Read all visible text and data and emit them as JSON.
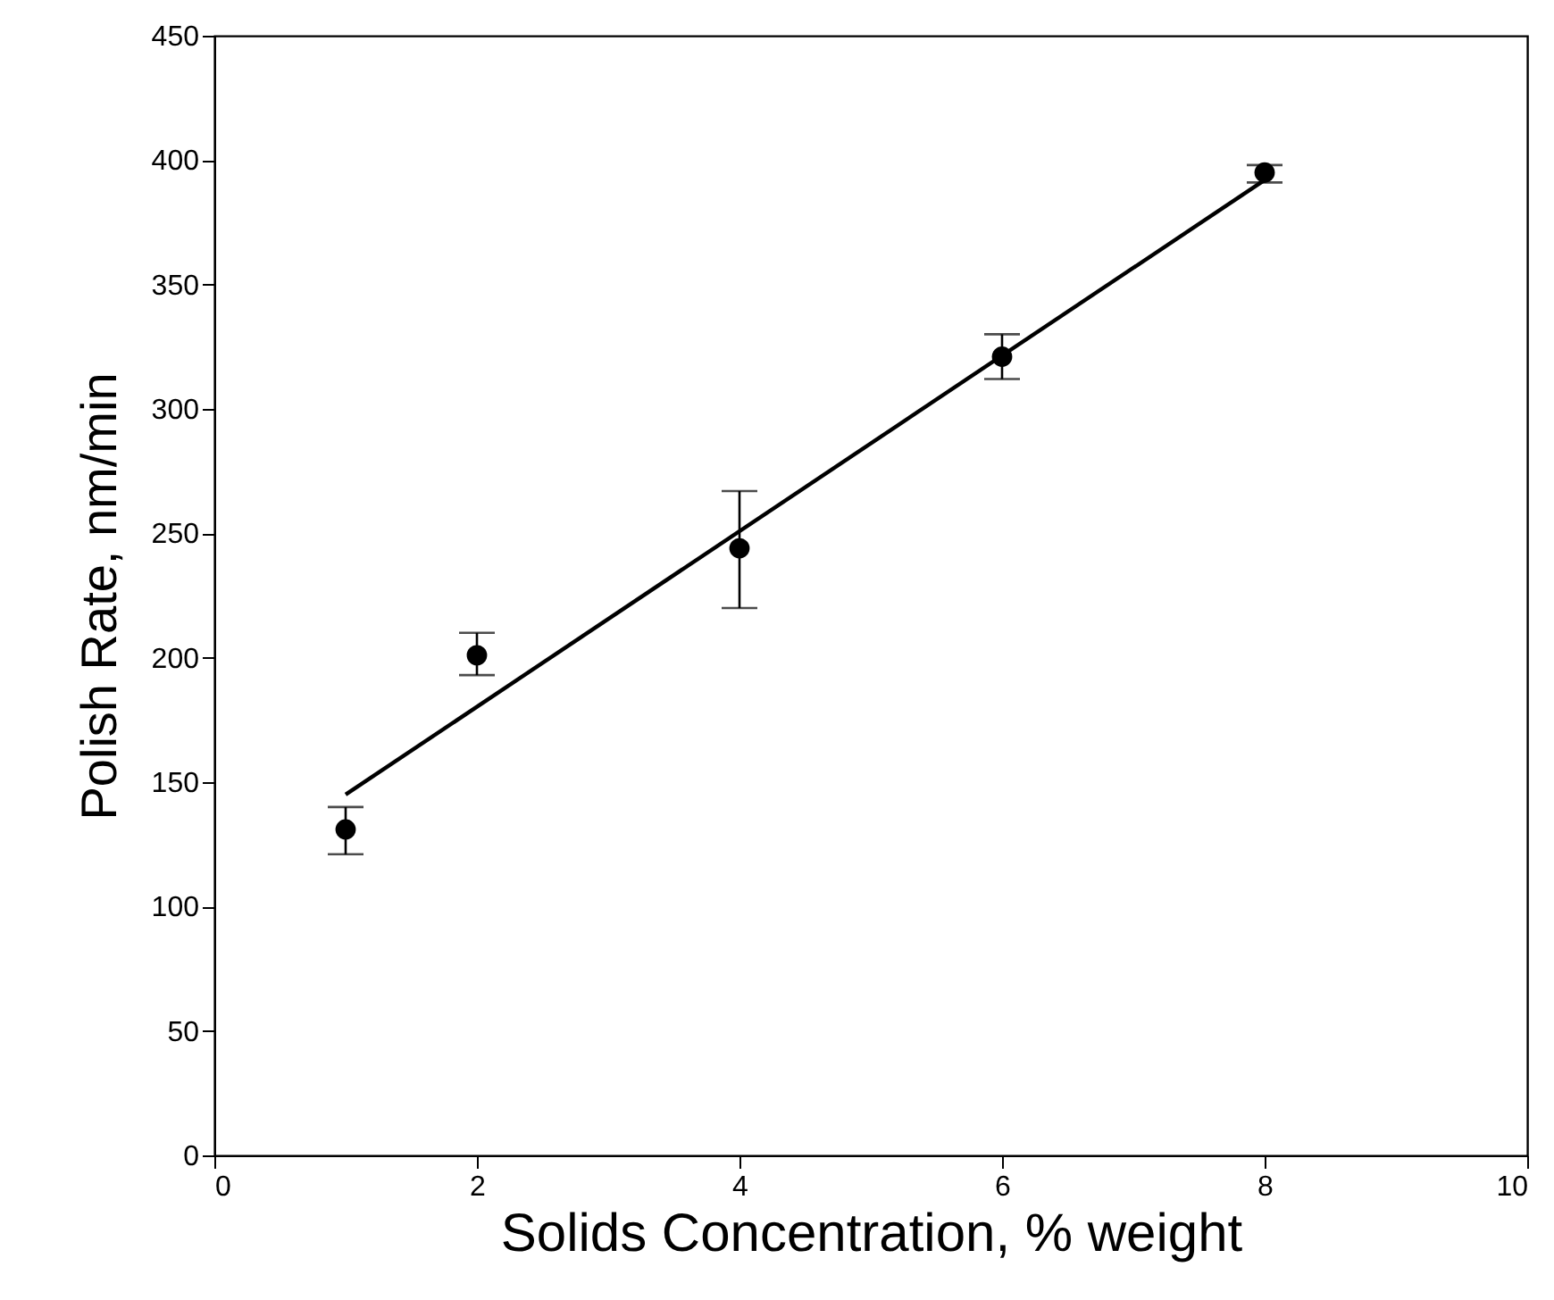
{
  "chart_data": {
    "type": "scatter",
    "xlabel": "Solids Concentration, % weight",
    "ylabel": "Polish Rate, nm/min",
    "xlim": [
      0,
      10
    ],
    "xticks": [
      0,
      2,
      4,
      6,
      8,
      10
    ],
    "ylim": [
      0,
      450
    ],
    "yticks": [
      0,
      50,
      100,
      150,
      200,
      250,
      300,
      350,
      400,
      450
    ],
    "grid": false,
    "series": [
      {
        "marker": "circle",
        "color": "#000000",
        "x": [
          1,
          2,
          4,
          6,
          8
        ],
        "values": [
          131,
          201,
          244,
          321,
          395
        ],
        "errors": [
          [
            121,
            140
          ],
          [
            193,
            210
          ],
          [
            220,
            267
          ],
          [
            312,
            330
          ],
          [
            391,
            398
          ]
        ]
      },
      {
        "type": "line",
        "marker": "none",
        "color": "#000000",
        "x": [
          1,
          8
        ],
        "values": [
          145,
          392
        ],
        "line_style": "solid"
      }
    ]
  }
}
